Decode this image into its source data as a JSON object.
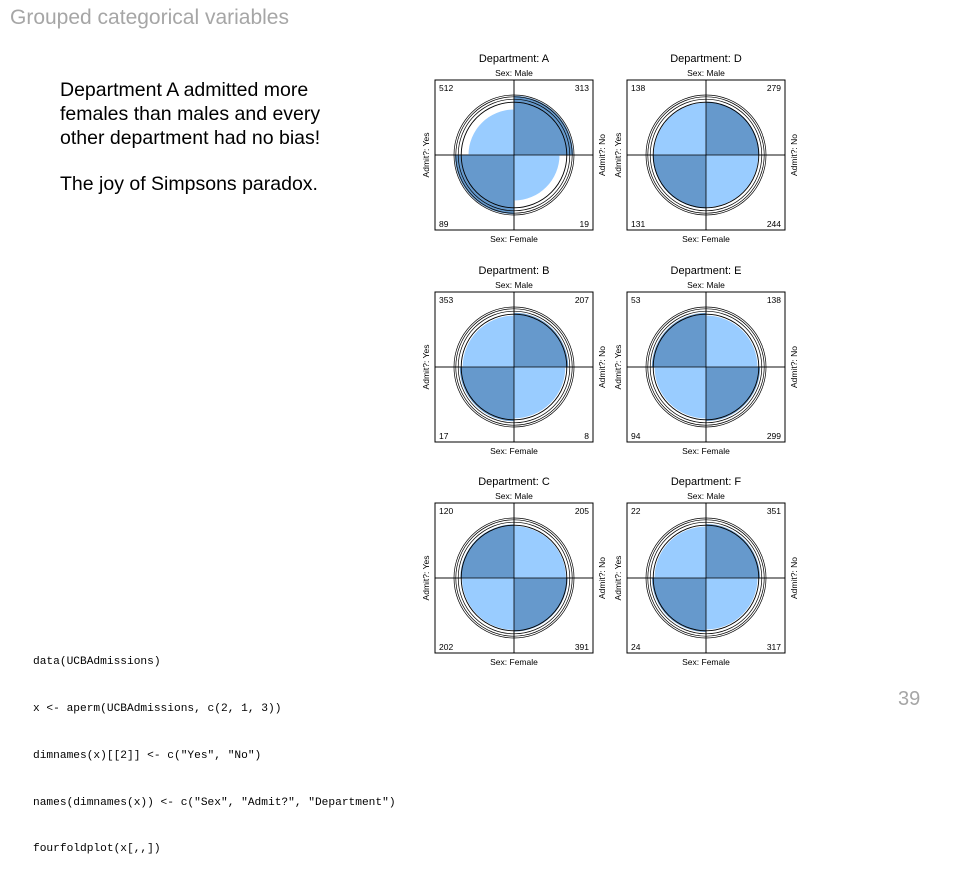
{
  "slide": {
    "title": "Grouped categorical variables",
    "paragraph1": "Department A admitted more females than males and every other department had no bias!",
    "paragraph2": "The joy of Simpsons paradox.",
    "code_lines": [
      "data(UCBAdmissions)",
      "x <- aperm(UCBAdmissions, c(2, 1, 3))",
      "dimnames(x)[[2]] <- c(\"Yes\", \"No\")",
      "names(dimnames(x)) <- c(\"Sex\", \"Admit?\", \"Department\")",
      "fourfoldplot(x[,,])"
    ],
    "page_number": "39"
  },
  "chart_data": {
    "type": "fourfold",
    "colors": {
      "dark": "#6699cc",
      "light": "#99ccff",
      "outline": "#000000"
    },
    "labels": {
      "top": "Sex: Male",
      "bottom": "Sex: Female",
      "left": "Admit?: Yes",
      "right": "Admit?: No"
    },
    "panels": [
      {
        "title": "Department: A",
        "counts": {
          "male_yes": 512,
          "male_no": 313,
          "female_yes": 89,
          "female_no": 19
        }
      },
      {
        "title": "Department: D",
        "counts": {
          "male_yes": 138,
          "male_no": 279,
          "female_yes": 131,
          "female_no": 244
        }
      },
      {
        "title": "Department: B",
        "counts": {
          "male_yes": 353,
          "male_no": 207,
          "female_yes": 17,
          "female_no": 8
        }
      },
      {
        "title": "Department: E",
        "counts": {
          "male_yes": 53,
          "male_no": 138,
          "female_yes": 94,
          "female_no": 299
        }
      },
      {
        "title": "Department: C",
        "counts": {
          "male_yes": 120,
          "male_no": 205,
          "female_yes": 202,
          "female_no": 391
        }
      },
      {
        "title": "Department: F",
        "counts": {
          "male_yes": 22,
          "male_no": 351,
          "female_yes": 24,
          "female_no": 317
        }
      }
    ]
  }
}
